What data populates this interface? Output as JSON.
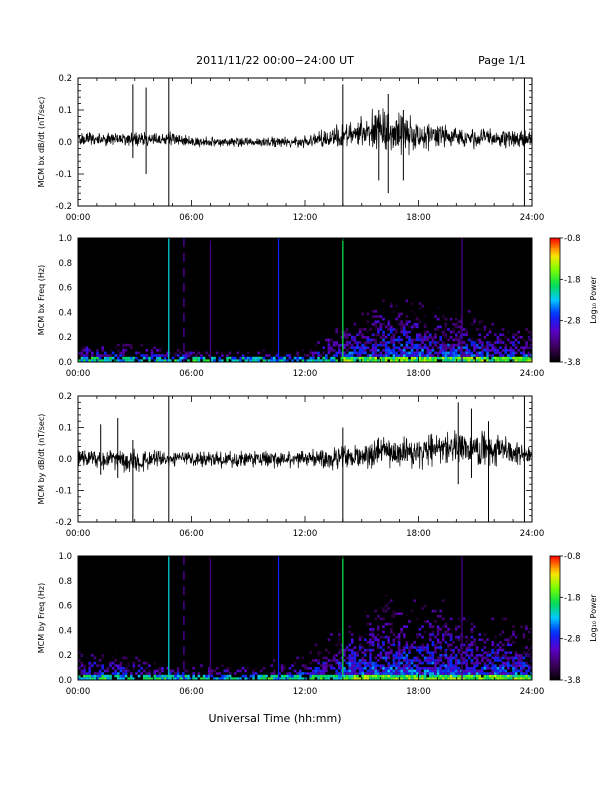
{
  "header": {
    "title": "2011/11/22  00:00−24:00 UT",
    "page": "Page 1/1"
  },
  "xlabel": "Universal Time (hh:mm)",
  "colorbar": {
    "label": "Log₁₀ Power",
    "ticks": [
      "-0.8",
      "-1.8",
      "-2.8",
      "-3.8"
    ],
    "tick_values": [
      -0.8,
      -1.8,
      -2.8,
      -3.8
    ],
    "range": [
      -3.8,
      -0.8
    ]
  },
  "chart_data": [
    {
      "type": "line",
      "ylabel": "MCM bx dB/dt (nT/sec)",
      "xlim": [
        0,
        24
      ],
      "ylim": [
        -0.2,
        0.2
      ],
      "x_ticks": [
        "00:00",
        "06:00",
        "12:00",
        "18:00",
        "24:00"
      ],
      "y_ticks": [
        "-0.2",
        "-0.1",
        "0.0",
        "0.1",
        "0.2"
      ],
      "y_tick_values": [
        -0.2,
        -0.1,
        0.0,
        0.1,
        0.2
      ],
      "series_color": "#000000",
      "envelope_hours": [
        0,
        1,
        2,
        3,
        4,
        5,
        6,
        7,
        8,
        9,
        10,
        11,
        12,
        13,
        14,
        15,
        16,
        17,
        18,
        19,
        20,
        21,
        22,
        23,
        24
      ],
      "envelope_amplitude": [
        0.02,
        0.02,
        0.02,
        0.022,
        0.02,
        0.02,
        0.015,
        0.015,
        0.015,
        0.015,
        0.015,
        0.016,
        0.018,
        0.025,
        0.035,
        0.045,
        0.06,
        0.06,
        0.045,
        0.035,
        0.03,
        0.03,
        0.028,
        0.025,
        0.025
      ],
      "center_trend": [
        0.01,
        0.01,
        0.01,
        0.01,
        0.01,
        0.01,
        0.0,
        0.0,
        0.0,
        0.0,
        0.0,
        0.0,
        0.0,
        0.01,
        0.02,
        0.03,
        0.04,
        0.03,
        0.02,
        0.02,
        0.02,
        0.01,
        0.01,
        0.01,
        0.01
      ],
      "spikes": [
        {
          "t": 2.9,
          "min": -0.05,
          "max": 0.18
        },
        {
          "t": 3.6,
          "min": -0.1,
          "max": 0.17
        },
        {
          "t": 4.8,
          "min": -0.22,
          "max": 0.22
        },
        {
          "t": 14.0,
          "min": -0.2,
          "max": 0.18
        },
        {
          "t": 15.9,
          "min": -0.12,
          "max": 0.1
        },
        {
          "t": 16.4,
          "min": -0.16,
          "max": 0.15
        },
        {
          "t": 17.2,
          "min": -0.12,
          "max": 0.1
        },
        {
          "t": 23.6,
          "min": -0.2,
          "max": 0.2
        }
      ]
    },
    {
      "type": "heatmap",
      "ylabel": "MCM bx Freq (Hz)",
      "xlim": [
        0,
        24
      ],
      "ylim": [
        0.0,
        1.0
      ],
      "x_ticks": [
        "00:00",
        "06:00",
        "12:00",
        "18:00",
        "24:00"
      ],
      "y_ticks": [
        "0.0",
        "0.2",
        "0.4",
        "0.6",
        "0.8",
        "1.0"
      ],
      "y_tick_values": [
        0.0,
        0.2,
        0.4,
        0.6,
        0.8,
        1.0
      ],
      "activity_hours": [
        0,
        2,
        4,
        6,
        8,
        10,
        12,
        13,
        14,
        15,
        16,
        17,
        18,
        19,
        20,
        21,
        22,
        23,
        24
      ],
      "activity_top_freq": [
        0.2,
        0.15,
        0.12,
        0.12,
        0.1,
        0.1,
        0.12,
        0.2,
        0.3,
        0.35,
        0.45,
        0.5,
        0.45,
        0.4,
        0.42,
        0.35,
        0.3,
        0.3,
        0.3
      ],
      "vertical_lines": [
        {
          "t": 4.8,
          "log_power": -2.2
        },
        {
          "t": 5.6,
          "log_power": -3.2,
          "dashed": true
        },
        {
          "t": 7.0,
          "log_power": -3.3
        },
        {
          "t": 10.6,
          "log_power": -2.7
        },
        {
          "t": 14.0,
          "log_power": -1.9
        },
        {
          "t": 20.3,
          "log_power": -3.3
        }
      ]
    },
    {
      "type": "line",
      "ylabel": "MCM by dB/dt (nT/sec)",
      "xlim": [
        0,
        24
      ],
      "ylim": [
        -0.2,
        0.2
      ],
      "x_ticks": [
        "00:00",
        "06:00",
        "12:00",
        "18:00",
        "24:00"
      ],
      "y_ticks": [
        "-0.2",
        "-0.1",
        "0.0",
        "0.1",
        "0.2"
      ],
      "y_tick_values": [
        -0.2,
        -0.1,
        0.0,
        0.1,
        0.2
      ],
      "series_color": "#000000",
      "envelope_hours": [
        0,
        1,
        2,
        3,
        4,
        5,
        6,
        7,
        8,
        9,
        10,
        11,
        12,
        13,
        14,
        15,
        16,
        17,
        18,
        19,
        20,
        21,
        22,
        23,
        24
      ],
      "envelope_amplitude": [
        0.025,
        0.03,
        0.035,
        0.035,
        0.025,
        0.02,
        0.02,
        0.025,
        0.025,
        0.025,
        0.025,
        0.025,
        0.025,
        0.03,
        0.035,
        0.04,
        0.045,
        0.045,
        0.045,
        0.045,
        0.05,
        0.05,
        0.045,
        0.035,
        0.03
      ],
      "center_trend": [
        0.0,
        0.0,
        0.0,
        -0.01,
        0.0,
        0.0,
        0.0,
        0.0,
        0.0,
        0.0,
        0.0,
        0.0,
        0.0,
        0.0,
        0.0,
        0.01,
        0.02,
        0.02,
        0.02,
        0.03,
        0.03,
        0.04,
        0.03,
        0.02,
        0.01
      ],
      "spikes": [
        {
          "t": 1.2,
          "min": -0.05,
          "max": 0.11
        },
        {
          "t": 2.1,
          "min": -0.06,
          "max": 0.13
        },
        {
          "t": 2.9,
          "min": -0.2,
          "max": 0.06
        },
        {
          "t": 4.8,
          "min": -0.22,
          "max": 0.22
        },
        {
          "t": 14.0,
          "min": -0.2,
          "max": 0.1
        },
        {
          "t": 20.1,
          "min": -0.08,
          "max": 0.18
        },
        {
          "t": 20.8,
          "min": -0.06,
          "max": 0.16
        },
        {
          "t": 21.7,
          "min": -0.2,
          "max": 0.12
        },
        {
          "t": 23.6,
          "min": -0.2,
          "max": 0.2
        }
      ]
    },
    {
      "type": "heatmap",
      "ylabel": "MCM by Freq (Hz)",
      "xlim": [
        0,
        24
      ],
      "ylim": [
        0.0,
        1.0
      ],
      "x_ticks": [
        "00:00",
        "06:00",
        "12:00",
        "18:00",
        "24:00"
      ],
      "y_ticks": [
        "0.0",
        "0.2",
        "0.4",
        "0.6",
        "0.8",
        "1.0"
      ],
      "y_tick_values": [
        0.0,
        0.2,
        0.4,
        0.6,
        0.8,
        1.0
      ],
      "activity_hours": [
        0,
        2,
        4,
        6,
        8,
        10,
        12,
        13,
        14,
        15,
        16,
        17,
        18,
        19,
        20,
        21,
        22,
        23,
        24
      ],
      "activity_top_freq": [
        0.25,
        0.2,
        0.15,
        0.12,
        0.12,
        0.15,
        0.2,
        0.3,
        0.4,
        0.5,
        0.6,
        0.6,
        0.55,
        0.6,
        0.55,
        0.5,
        0.45,
        0.45,
        0.4
      ],
      "vertical_lines": [
        {
          "t": 4.8,
          "log_power": -2.2
        },
        {
          "t": 5.6,
          "log_power": -3.2,
          "dashed": true
        },
        {
          "t": 7.0,
          "log_power": -3.3
        },
        {
          "t": 10.6,
          "log_power": -2.7
        },
        {
          "t": 14.0,
          "log_power": -1.9
        },
        {
          "t": 20.3,
          "log_power": -3.3
        }
      ]
    }
  ]
}
